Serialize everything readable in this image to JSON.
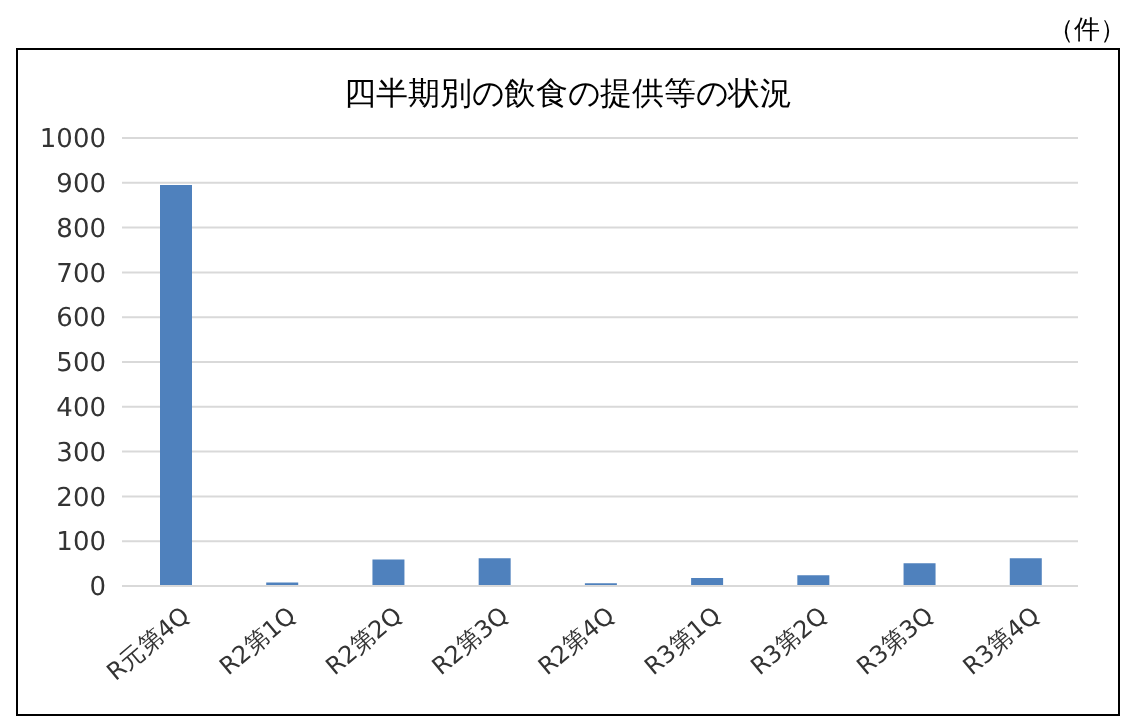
{
  "chart_data": {
    "type": "bar",
    "title": "四半期別の飲食の提供等の状況",
    "ylabel": "（件）",
    "categories": [
      "R元第4Q",
      "R2第1Q",
      "R2第2Q",
      "R2第3Q",
      "R2第4Q",
      "R3第1Q",
      "R3第2Q",
      "R3第3Q",
      "R3第4Q"
    ],
    "values": [
      895,
      8,
      59,
      62,
      6,
      18,
      24,
      51,
      62
    ],
    "color": "#4f81bd",
    "ylim": [
      0,
      1000
    ],
    "yticks": [
      0,
      100,
      200,
      300,
      400,
      500,
      600,
      700,
      800,
      900,
      1000
    ],
    "grid": "y"
  }
}
